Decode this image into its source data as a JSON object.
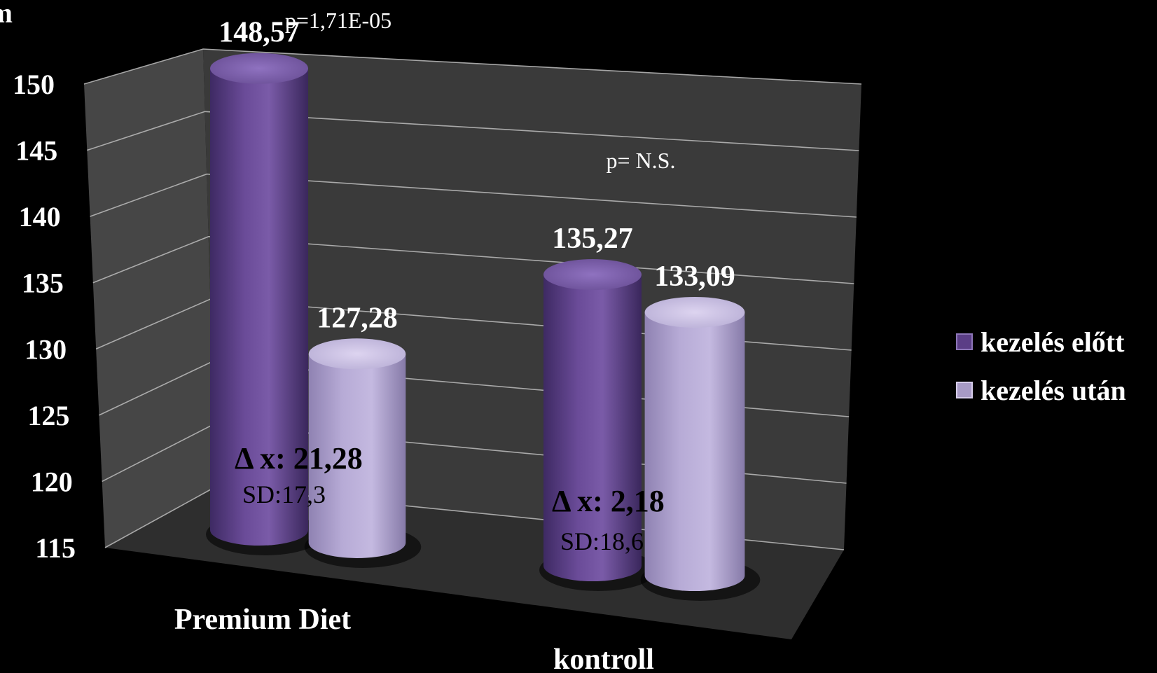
{
  "chart_data": {
    "type": "bar",
    "style": "3d-cylinder",
    "categories": [
      "Premium Diet",
      "kontroll"
    ],
    "series": [
      {
        "name": "kezelés előtt",
        "values": [
          148.57,
          135.27
        ],
        "color": "#5b3e86"
      },
      {
        "name": "kezelés után",
        "values": [
          127.28,
          133.09
        ],
        "color": "#a89bc6"
      }
    ],
    "value_labels": [
      [
        "148,57",
        "135,27"
      ],
      [
        "127,28",
        "133,09"
      ]
    ],
    "ylim": [
      115,
      150
    ],
    "yticks": [
      "115",
      "120",
      "125",
      "130",
      "135",
      "140",
      "145",
      "150"
    ],
    "ylabel_fragment": "m",
    "grid": true,
    "legend": "right",
    "annotations": {
      "p_premium": "p=1,71E-05",
      "p_kontroll": "p= N.S.",
      "delta_premium": "Δ x: 21,28",
      "sd_premium": "SD:17,3",
      "delta_kontroll": "Δ x: 2,18",
      "sd_kontroll": "SD:18,6"
    }
  },
  "colors": {
    "background": "#000000",
    "back_wall": "#3a3a3a",
    "floor": "#2c2c2c",
    "grid_line": "#bdbdbd",
    "text": "#ffffff"
  }
}
